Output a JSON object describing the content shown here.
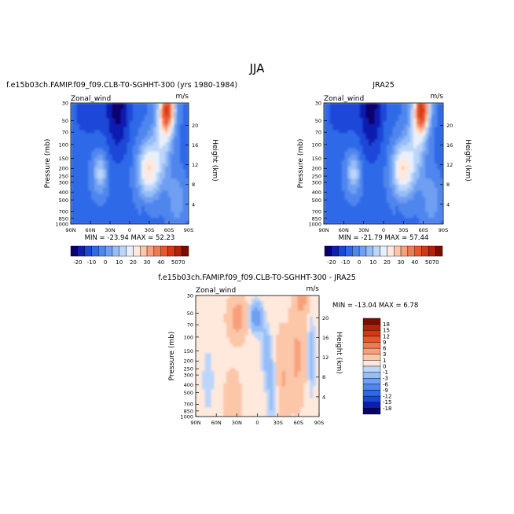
{
  "figure": {
    "title": "JJA"
  },
  "colors": {
    "scale": [
      "#08006e",
      "#0a1fb0",
      "#1a47d8",
      "#2e6ae8",
      "#4f86ee",
      "#6f9ff2",
      "#96bdf6",
      "#bcd6fa",
      "#e6f0ff",
      "#ffe8dc",
      "#fcc6a8",
      "#f8a07c",
      "#f27a52",
      "#e8552e",
      "#d23816",
      "#b0220a",
      "#7c0c00"
    ]
  },
  "chart_data": [
    {
      "type": "heatmap",
      "id": "model",
      "title": "f.e15b03ch.FAMIP.f09_f09.CLB-T0-SGHHT-300 (yrs 1980-1984)",
      "variable": "Zonal_wind",
      "units": "m/s",
      "xlabel": "",
      "ylabel": "Pressure (mb)",
      "y2label": "Height (km)",
      "x_ticks": [
        "90N",
        "60N",
        "30N",
        "0",
        "30S",
        "60S",
        "90S"
      ],
      "y_ticks": [
        "30",
        "50",
        "70",
        "100",
        "150",
        "200",
        "250",
        "300",
        "400",
        "500",
        "700",
        "850",
        "1000"
      ],
      "y2_ticks": [
        "20",
        "16",
        "12",
        "8",
        "4"
      ],
      "ylim": [
        1000,
        30
      ],
      "stats": "MIN = -23.94   MAX =  52.23",
      "min": -23.94,
      "max": 52.23,
      "colorbar_labels": [
        "-20",
        "-10",
        "0",
        "10",
        "20",
        "30",
        "40",
        "50",
        "70"
      ]
    },
    {
      "type": "heatmap",
      "id": "obs",
      "title": "JRA25",
      "variable": "Zonal_wind",
      "units": "m/s",
      "xlabel": "",
      "ylabel": "Pressure (mb)",
      "y2label": "Height (km)",
      "x_ticks": [
        "90N",
        "60N",
        "30N",
        "0",
        "30S",
        "60S",
        "90S"
      ],
      "y_ticks": [
        "30",
        "50",
        "70",
        "100",
        "150",
        "200",
        "250",
        "300",
        "400",
        "500",
        "700",
        "850",
        "1000"
      ],
      "y2_ticks": [
        "20",
        "16",
        "12",
        "8",
        "4"
      ],
      "ylim": [
        1000,
        30
      ],
      "stats": "MIN = -21.79   MAX =  57.44",
      "min": -21.79,
      "max": 57.44,
      "colorbar_labels": [
        "-20",
        "-10",
        "0",
        "10",
        "20",
        "30",
        "40",
        "50",
        "70"
      ]
    },
    {
      "type": "heatmap",
      "id": "diff",
      "title": "f.e15b03ch.FAMIP.f09_f09.CLB-T0-SGHHT-300 - JRA25",
      "variable": "Zonal_wind",
      "units": "m/s",
      "xlabel": "",
      "ylabel": "Pressure (mb)",
      "y2label": "Height (km)",
      "x_ticks": [
        "90N",
        "60N",
        "30N",
        "0",
        "30S",
        "60S",
        "90S"
      ],
      "y_ticks": [
        "30",
        "50",
        "70",
        "100",
        "150",
        "200",
        "250",
        "300",
        "400",
        "500",
        "700",
        "850",
        "1000"
      ],
      "y2_ticks": [
        "20",
        "16",
        "12",
        "8",
        "4"
      ],
      "ylim": [
        1000,
        30
      ],
      "stats": "MIN = -13.04   MAX =   6.78",
      "min": -13.04,
      "max": 6.78,
      "colorbar_labels": [
        "18",
        "15",
        "12",
        "9",
        "6",
        "3",
        "1",
        "0",
        "-1",
        "-3",
        "-6",
        "-9",
        "-12",
        "-15",
        "-18"
      ]
    }
  ]
}
